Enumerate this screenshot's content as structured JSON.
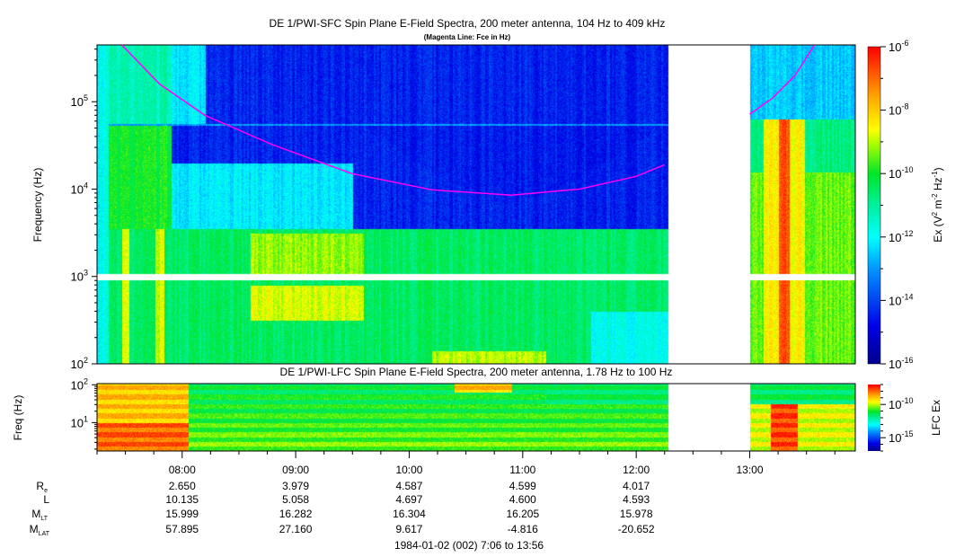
{
  "chart_data": {
    "type": "heatmap",
    "title": "DE 1/PWI-SFC  Spin Plane E-Field Spectra, 200 meter antenna, 104 Hz to 409 kHz",
    "subtitle": "(Magenta Line: Fce in Hz)",
    "ylabel": "Frequency (Hz)",
    "y_ticks": [
      "10^2",
      "10^3",
      "10^4",
      "10^5"
    ],
    "y_log_range": [
      2,
      5.65
    ],
    "x_range_hours": [
      7.25,
      13.93
    ],
    "x_ticks": [
      "08:00",
      "09:00",
      "10:00",
      "11:00",
      "12:00",
      "13:00"
    ],
    "data_gap_hours": [
      12.28,
      13.0
    ],
    "colorbar": {
      "label": "Ex (V^2 m^-2 Hz^-1)",
      "ticks": [
        -6,
        -8,
        -10,
        -12,
        -14,
        -16
      ],
      "log_range": [
        -16,
        -6
      ]
    },
    "fce_line": {
      "color": "#ff00ff",
      "segments": [
        [
          [
            7.47,
            445000
          ],
          [
            7.8,
            160000
          ],
          [
            8.2,
            70000
          ],
          [
            8.8,
            32000
          ],
          [
            9.5,
            15000
          ],
          [
            10.2,
            9800
          ],
          [
            10.9,
            8500
          ],
          [
            11.5,
            10000
          ],
          [
            12.0,
            14000
          ],
          [
            12.25,
            19000
          ]
        ],
        [
          [
            13.0,
            72000
          ],
          [
            13.2,
            110000
          ],
          [
            13.4,
            200000
          ],
          [
            13.57,
            445000
          ]
        ]
      ]
    },
    "lfc": {
      "title": "DE 1/PWI-LFC  Spin Plane E-Field Spectra, 200 meter antenna, 1.78 Hz to 100 Hz",
      "ylabel": "Freq (Hz)",
      "y_ticks": [
        "10^1",
        "10^2"
      ],
      "y_log_range": [
        0.25,
        2.03
      ],
      "colorbar": {
        "label": "LFC Ex",
        "ticks": [
          -10,
          -15
        ],
        "log_range": [
          -17,
          -7
        ]
      }
    },
    "ephemeris": {
      "rows": [
        {
          "label": "R",
          "sub": "e",
          "values": [
            "2.650",
            "3.979",
            "4.587",
            "4.599",
            "4.017"
          ]
        },
        {
          "label": "L",
          "sub": "",
          "values": [
            "10.135",
            "5.058",
            "4.697",
            "4.600",
            "4.593"
          ]
        },
        {
          "label": "M",
          "sub": "LT",
          "values": [
            "15.999",
            "16.282",
            "16.304",
            "16.205",
            "15.978"
          ]
        },
        {
          "label": "M",
          "sub": "LAT",
          "values": [
            "57.895",
            "27.160",
            "9.617",
            "-4.816",
            "-20.652"
          ]
        }
      ]
    },
    "date_label": "1984-01-02 (002) 7:06 to 13:56"
  }
}
